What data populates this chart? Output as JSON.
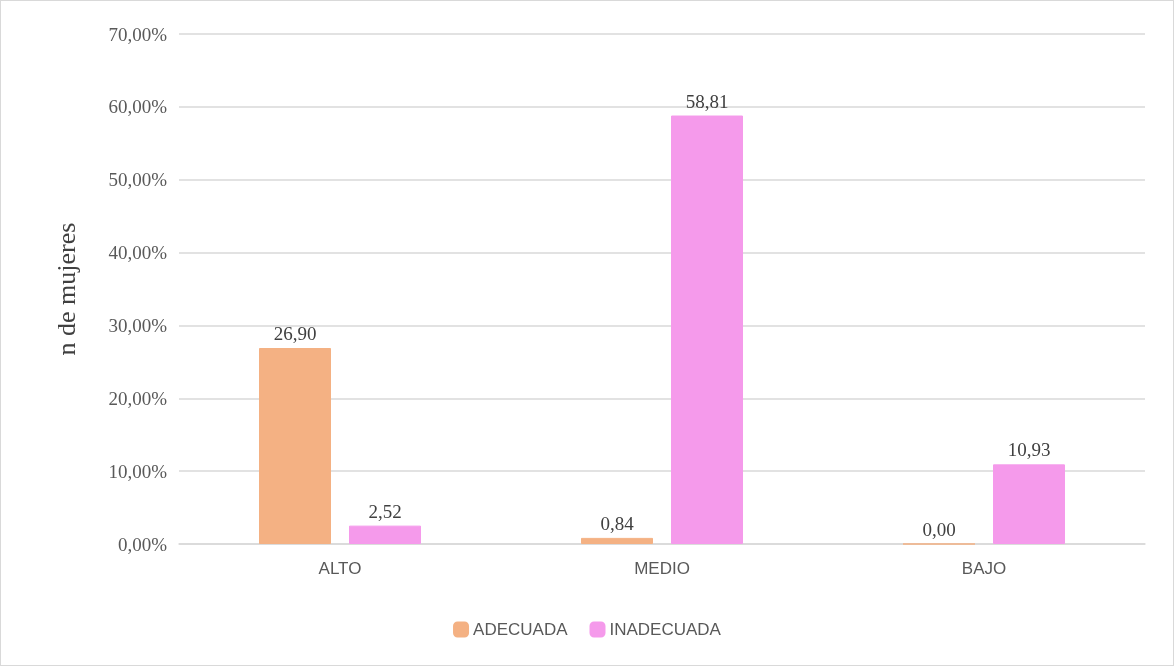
{
  "chart_data": {
    "type": "bar",
    "ylabel": "n de mujeres",
    "categories": [
      "ALTO",
      "MEDIO",
      "BAJO"
    ],
    "series": [
      {
        "name": "ADECUADA",
        "color": "#f4b183",
        "values": [
          26.9,
          0.84,
          0
        ],
        "value_labels": [
          "26,90",
          "0,84",
          "0,00"
        ]
      },
      {
        "name": "INADECUADA",
        "color": "#f59aeb",
        "values": [
          2.52,
          58.81,
          10.93
        ],
        "value_labels": [
          "2,52",
          "58,81",
          "10,93"
        ]
      }
    ],
    "ylim": [
      0,
      70
    ],
    "yticks": [
      {
        "value": 0,
        "label": "0,00%"
      },
      {
        "value": 10,
        "label": "10,00%"
      },
      {
        "value": 20,
        "label": "20,00%"
      },
      {
        "value": 30,
        "label": "30,00%"
      },
      {
        "value": 40,
        "label": "40,00%"
      },
      {
        "value": 50,
        "label": "50,00%"
      },
      {
        "value": 60,
        "label": "60,00%"
      },
      {
        "value": 70,
        "label": "70,00%"
      }
    ],
    "grid": "y",
    "legend": "bottom"
  }
}
